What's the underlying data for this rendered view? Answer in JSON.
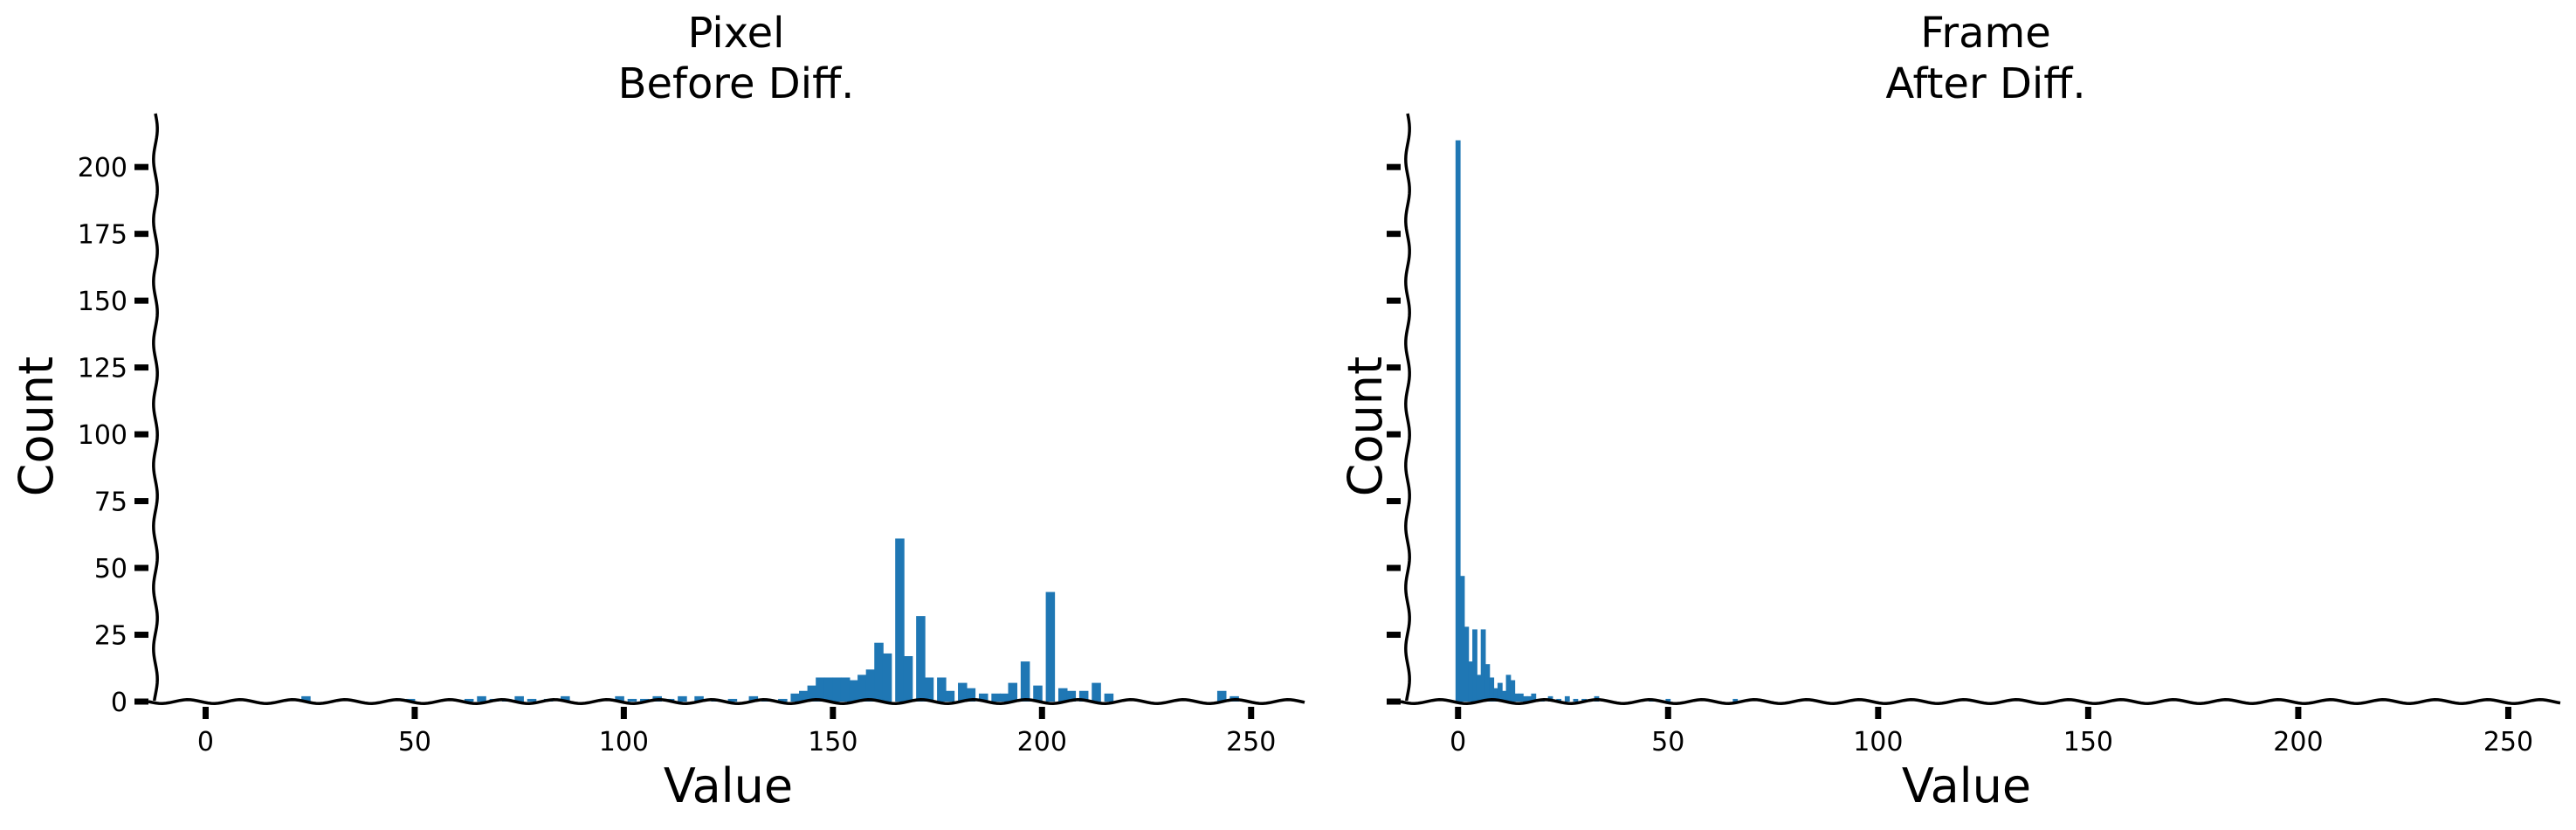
{
  "chart_data": [
    {
      "type": "bar",
      "title_line1": "Pixel",
      "title_line2": "Before Diff.",
      "xlabel": "Value",
      "ylabel": "Count",
      "xlim": [
        -12,
        263
      ],
      "ylim": [
        0,
        220
      ],
      "xticks": [
        0,
        50,
        100,
        150,
        200,
        250
      ],
      "yticks": [
        0,
        25,
        50,
        75,
        100,
        125,
        150,
        175,
        200
      ],
      "show_yticklabels": true,
      "color": "#1f77b4",
      "grid": false,
      "bar_width": 2.2,
      "x": [
        24,
        49,
        63,
        66,
        69,
        72,
        75,
        78,
        82,
        86,
        99,
        102,
        105,
        108,
        111,
        114,
        118,
        122,
        126,
        131,
        134,
        138,
        141,
        143,
        145,
        147,
        149,
        151,
        153,
        155,
        157,
        159,
        161,
        163,
        166,
        168,
        171,
        173,
        176,
        178,
        181,
        183,
        186,
        189,
        191,
        193,
        196,
        199,
        202,
        205,
        207,
        210,
        213,
        216,
        243,
        246
      ],
      "values": [
        2,
        1,
        1,
        2,
        1,
        1,
        2,
        1,
        1,
        2,
        2,
        1,
        1,
        2,
        1,
        2,
        2,
        1,
        1,
        2,
        1,
        1,
        3,
        4,
        6,
        9,
        9,
        9,
        9,
        8,
        10,
        12,
        22,
        18,
        61,
        17,
        32,
        9,
        9,
        4,
        7,
        5,
        3,
        3,
        3,
        7,
        15,
        6,
        41,
        5,
        4,
        4,
        7,
        3,
        4,
        2
      ]
    },
    {
      "type": "bar",
      "title_line1": "Frame",
      "title_line2": "After Diff.",
      "xlabel": "Value",
      "ylabel": "Count",
      "xlim": [
        -12,
        263
      ],
      "ylim": [
        0,
        220
      ],
      "xticks": [
        0,
        50,
        100,
        150,
        200,
        250
      ],
      "yticks": [
        0,
        25,
        50,
        75,
        100,
        125,
        150,
        175,
        200
      ],
      "show_yticklabels": false,
      "color": "#1f77b4",
      "grid": false,
      "bar_width": 1.2,
      "x": [
        0,
        1,
        2,
        3,
        4,
        5,
        6,
        7,
        8,
        9,
        10,
        11,
        12,
        13,
        14,
        15,
        16,
        17,
        18,
        19,
        20,
        22,
        24,
        26,
        28,
        30,
        33,
        46,
        50,
        66
      ],
      "values": [
        210,
        47,
        28,
        15,
        27,
        10,
        27,
        14,
        9,
        5,
        7,
        4,
        10,
        8,
        3,
        3,
        2,
        2,
        3,
        1,
        1,
        2,
        1,
        2,
        1,
        1,
        2,
        1,
        1,
        1
      ]
    }
  ]
}
